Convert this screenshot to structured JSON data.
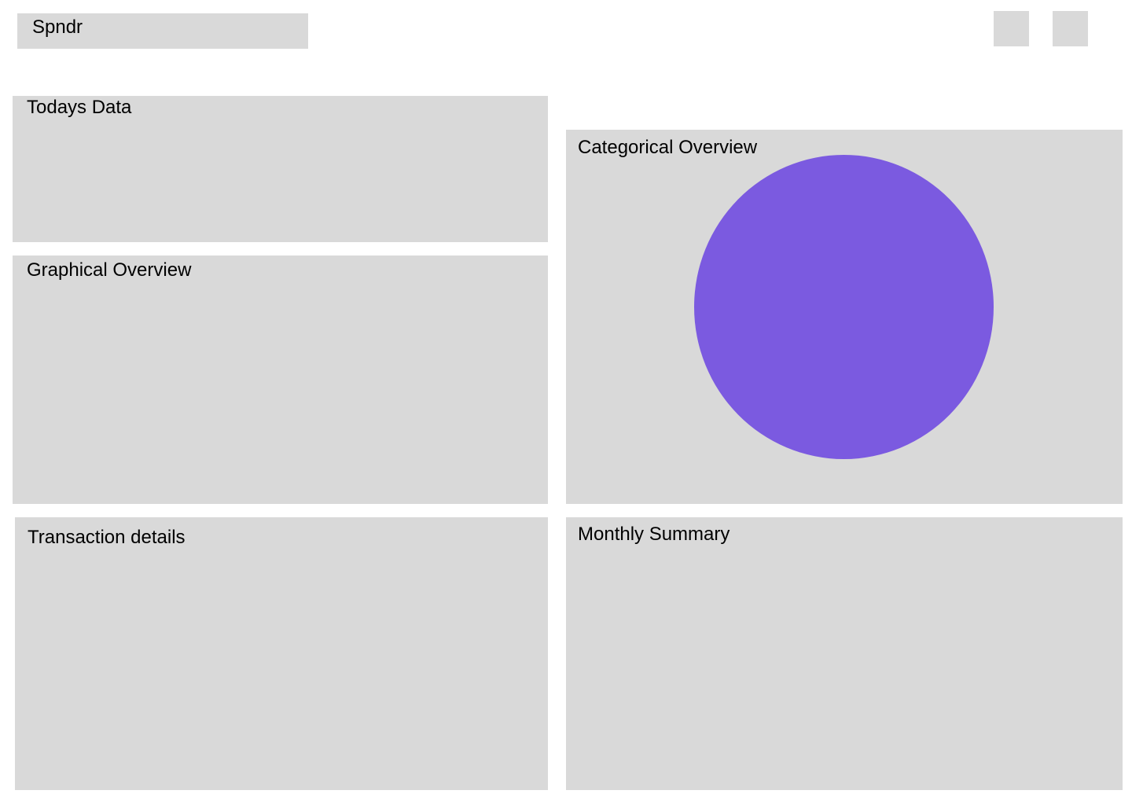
{
  "header": {
    "app_name": "Spndr"
  },
  "panels": {
    "todays_data": {
      "title": "Todays Data"
    },
    "graphical_overview": {
      "title": "Graphical Overview"
    },
    "categorical_overview": {
      "title": "Categorical Overview"
    },
    "transaction_details": {
      "title": "Transaction details"
    },
    "monthly_summary": {
      "title": "Monthly Summary"
    }
  },
  "colors": {
    "panel_bg": "#d9d9d9",
    "pie_fill": "#7b5ae0"
  }
}
